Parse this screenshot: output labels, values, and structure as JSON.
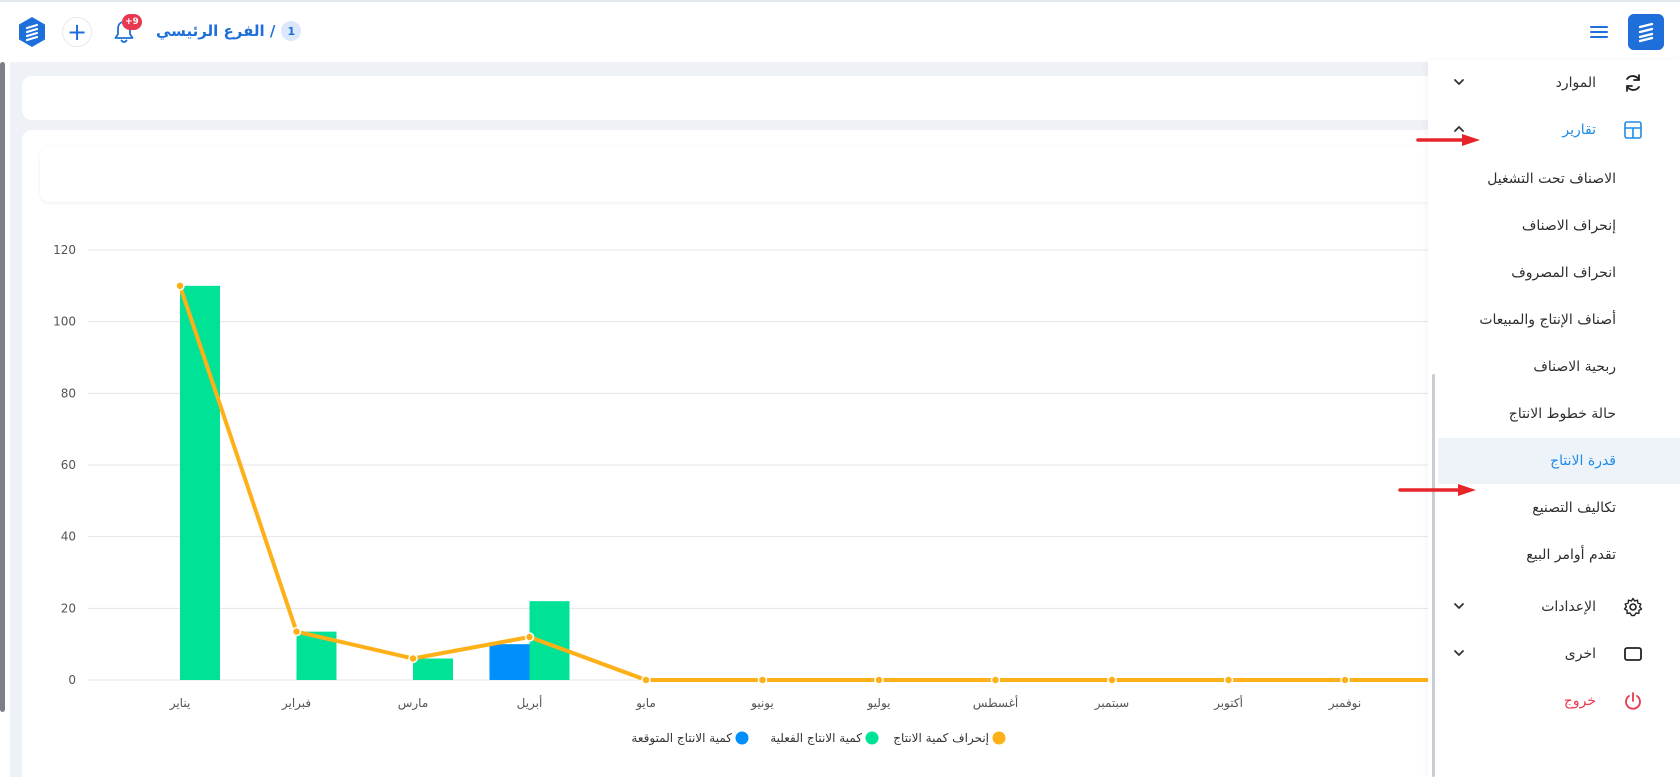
{
  "topbar": {
    "branch_name": "الفرع الرئيسي /",
    "branch_number": "1",
    "notification_badge": "+9"
  },
  "sidebar": {
    "resources": "الموارد",
    "reports": "تقارير",
    "report_items": [
      "الاصناف تحت التشغيل",
      "إنحراف الاصناف",
      "انحراف المصروف",
      "أصناف الإنتاج والمبيعات",
      "ربحية الاصناف",
      "حالة خطوط الانتاج",
      "قدرة الانتاج",
      "تكاليف التصنيع",
      "تقدم أوامر البيع"
    ],
    "settings": "الإعدادات",
    "other": "اخرى",
    "logout": "خروج"
  },
  "colors": {
    "accent_blue": "#1e8be8",
    "actual_green": "#00e396",
    "expected_blue": "#008ffb",
    "deviation_orange": "#feb019",
    "logout_red": "#e8384f"
  },
  "chart_data": {
    "type": "bar",
    "categories": [
      "يناير",
      "فبراير",
      "مارس",
      "أبريل",
      "مايو",
      "يونيو",
      "يوليو",
      "أغسطس",
      "سبتمبر",
      "أكتوبر",
      "نوفمبر"
    ],
    "series": [
      {
        "name": "كمية الانتاج المتوقعة",
        "type": "bar",
        "values": [
          0,
          0,
          0,
          10,
          0,
          0,
          0,
          0,
          0,
          0,
          0
        ]
      },
      {
        "name": "كمية الانتاج الفعلية",
        "type": "bar",
        "values": [
          110,
          13.5,
          6,
          22,
          0,
          0,
          0,
          0,
          0,
          0,
          0
        ]
      },
      {
        "name": "إنحراف كمية الانتاج",
        "type": "line",
        "values": [
          110,
          13.5,
          6,
          12,
          0,
          0,
          0,
          0,
          0,
          0,
          0
        ]
      }
    ],
    "yticks": [
      "0",
      "20",
      "40",
      "60",
      "80",
      "100",
      "120"
    ],
    "ylim": [
      0,
      120
    ],
    "legend": "bottom",
    "grid": true
  }
}
